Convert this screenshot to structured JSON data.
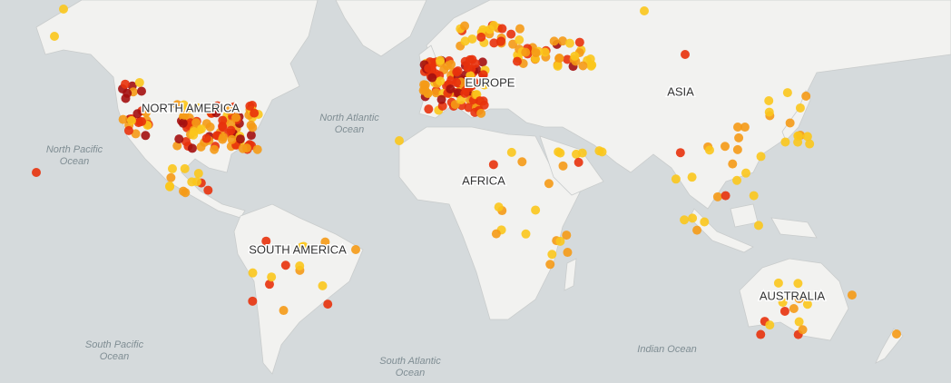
{
  "continents": [
    "NORTH AMERICA",
    "EUROPE",
    "ASIA",
    "AFRICA",
    "SOUTH AMERICA",
    "AUSTRALIA"
  ],
  "oceans": [
    {
      "lines": [
        "North Atlantic",
        "Ocean"
      ]
    },
    {
      "lines": [
        "North Pacific",
        "Ocean"
      ]
    },
    {
      "lines": [
        "South Pacific",
        "Ocean"
      ]
    },
    {
      "lines": [
        "South Atlantic",
        "Ocean"
      ]
    },
    {
      "lines": [
        "Indian Ocean"
      ]
    }
  ]
}
